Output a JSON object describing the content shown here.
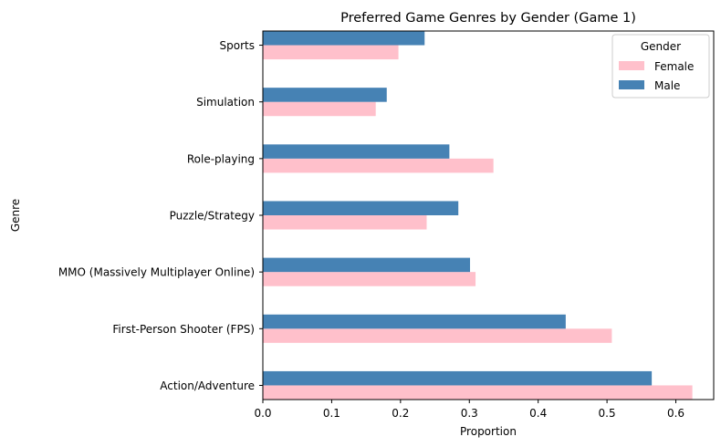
{
  "chart_data": {
    "type": "bar",
    "orientation": "horizontal",
    "title": "Preferred Game Genres by Gender (Game 1)",
    "xlabel": "Proportion",
    "ylabel": "Genre",
    "xlim": [
      0,
      0.655
    ],
    "xticks": [
      "0.0",
      "0.1",
      "0.2",
      "0.3",
      "0.4",
      "0.5",
      "0.6"
    ],
    "categories": [
      "Action/Adventure",
      "First-Person Shooter (FPS)",
      "MMO (Massively Multiplayer Online)",
      "Puzzle/Strategy",
      "Role-playing",
      "Simulation",
      "Sports"
    ],
    "series": [
      {
        "name": "Female",
        "color": "#ffc0cb",
        "values": [
          0.624,
          0.507,
          0.309,
          0.238,
          0.335,
          0.164,
          0.197
        ]
      },
      {
        "name": "Male",
        "color": "#4682b4",
        "values": [
          0.565,
          0.44,
          0.301,
          0.284,
          0.271,
          0.18,
          0.235
        ]
      }
    ],
    "legend": {
      "title": "Gender",
      "placement": "top-right"
    },
    "grid": false
  }
}
